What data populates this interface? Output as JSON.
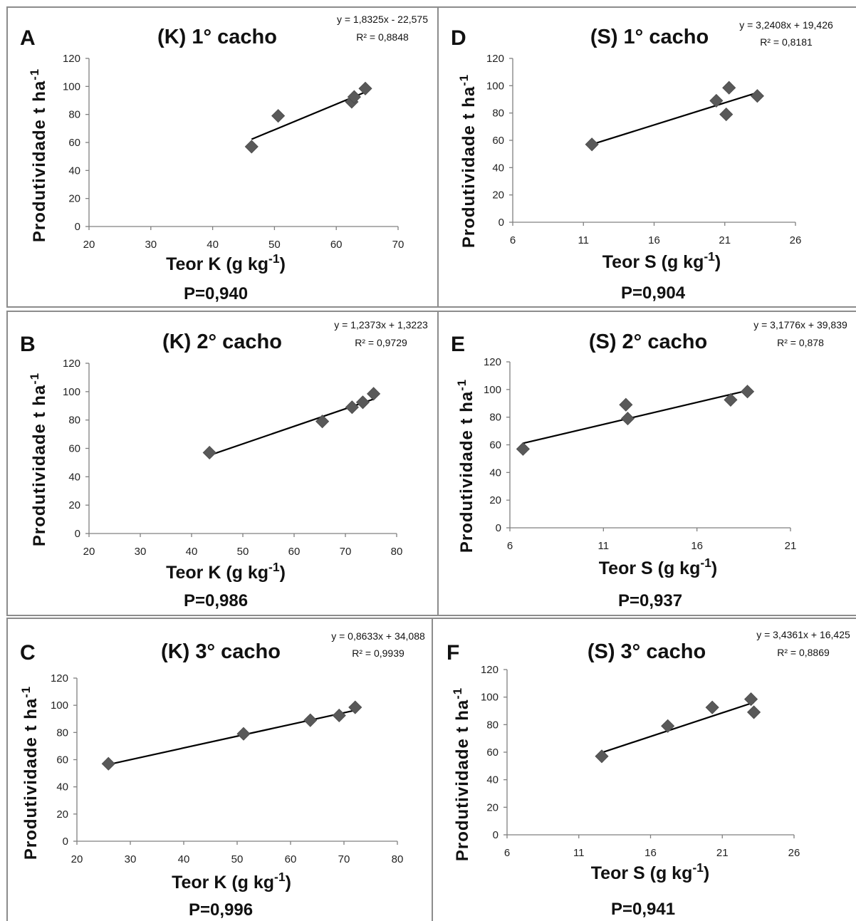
{
  "chart_data": [
    {
      "type": "scatter",
      "panel_letter": "A",
      "title": "(K) 1° cacho",
      "xlabel": "Teor K (g kg-1)",
      "ylabel": "Produtividade t ha-1",
      "xlim": [
        20,
        70
      ],
      "ylim": [
        0,
        120
      ],
      "xticks": [
        20,
        30,
        40,
        50,
        60,
        70
      ],
      "yticks": [
        0,
        20,
        40,
        60,
        80,
        100,
        120
      ],
      "points": [
        [
          46.3,
          57
        ],
        [
          50.6,
          79
        ],
        [
          62.5,
          89
        ],
        [
          62.9,
          92.5
        ],
        [
          64.7,
          98.5
        ]
      ],
      "trendline": {
        "slope": 1.8325,
        "intercept": -22.575,
        "x_range": [
          46.3,
          64.7
        ]
      },
      "equation": "y = 1,8325x - 22,575",
      "r2": "R² = 0,8848",
      "p_value": "P=0,940"
    },
    {
      "type": "scatter",
      "panel_letter": "D",
      "title": "(S) 1° cacho",
      "xlabel": "Teor S (g kg-1)",
      "ylabel": "Produtividade t ha-1",
      "xlim": [
        6,
        26
      ],
      "ylim": [
        0,
        120
      ],
      "xticks": [
        6,
        11,
        16,
        21,
        26
      ],
      "yticks": [
        0,
        20,
        40,
        60,
        80,
        100,
        120
      ],
      "points": [
        [
          11.6,
          57
        ],
        [
          20.4,
          89
        ],
        [
          21.3,
          98.5
        ],
        [
          21.1,
          79
        ],
        [
          23.3,
          92.5
        ]
      ],
      "trendline": {
        "slope": 3.2408,
        "intercept": 19.426,
        "x_range": [
          11.6,
          23.3
        ]
      },
      "equation": "y = 3,2408x + 19,426",
      "r2": "R² = 0,8181",
      "p_value": "P=0,904"
    },
    {
      "type": "scatter",
      "panel_letter": "B",
      "title": "(K) 2° cacho",
      "xlabel": "Teor K (g kg-1)",
      "ylabel": "Produtividade t ha-1",
      "xlim": [
        20,
        80
      ],
      "ylim": [
        0,
        120
      ],
      "xticks": [
        20,
        30,
        40,
        50,
        60,
        70,
        80
      ],
      "yticks": [
        0,
        20,
        40,
        60,
        80,
        100,
        120
      ],
      "points": [
        [
          43.5,
          57
        ],
        [
          65.5,
          79
        ],
        [
          71.3,
          89
        ],
        [
          73.4,
          92.5
        ],
        [
          75.5,
          98.5
        ]
      ],
      "trendline": {
        "slope": 1.2373,
        "intercept": 1.3223,
        "x_range": [
          43.5,
          75.5
        ]
      },
      "equation": "y = 1,2373x + 1,3223",
      "r2": "R² = 0,9729",
      "p_value": "P=0,986"
    },
    {
      "type": "scatter",
      "panel_letter": "E",
      "title": "(S) 2° cacho",
      "xlabel": "Teor S (g kg-1)",
      "ylabel": "Produtividade t ha-1",
      "xlim": [
        6,
        21
      ],
      "ylim": [
        0,
        120
      ],
      "xticks": [
        6,
        11,
        16,
        21
      ],
      "yticks": [
        0,
        20,
        40,
        60,
        80,
        100,
        120
      ],
      "points": [
        [
          6.7,
          57
        ],
        [
          12.2,
          89
        ],
        [
          12.3,
          79
        ],
        [
          17.8,
          92.5
        ],
        [
          18.7,
          98.5
        ]
      ],
      "trendline": {
        "slope": 3.1776,
        "intercept": 39.839,
        "x_range": [
          6.7,
          18.7
        ]
      },
      "equation": "y = 3,1776x + 39,839",
      "r2": "R² = 0,878",
      "p_value": "P=0,937"
    },
    {
      "type": "scatter",
      "panel_letter": "C",
      "title": "(K) 3° cacho",
      "xlabel": "Teor K (g kg-1)",
      "ylabel": "Produtividade t ha-1",
      "xlim": [
        20,
        80
      ],
      "ylim": [
        0,
        120
      ],
      "xticks": [
        20,
        30,
        40,
        50,
        60,
        70,
        80
      ],
      "yticks": [
        0,
        20,
        40,
        60,
        80,
        100,
        120
      ],
      "points": [
        [
          25.9,
          57
        ],
        [
          51.2,
          79
        ],
        [
          63.7,
          89
        ],
        [
          69.1,
          92.5
        ],
        [
          72.1,
          98.5
        ]
      ],
      "trendline": {
        "slope": 0.8633,
        "intercept": 34.088,
        "x_range": [
          25.9,
          72.1
        ]
      },
      "equation": "y = 0,8633x + 34,088",
      "r2": "R² = 0,9939",
      "p_value": "P=0,996"
    },
    {
      "type": "scatter",
      "panel_letter": "F",
      "title": "(S) 3° cacho",
      "xlabel": "Teor S (g kg-1)",
      "ylabel": "Produtividade t ha-1",
      "xlim": [
        6,
        26
      ],
      "ylim": [
        0,
        120
      ],
      "xticks": [
        6,
        11,
        16,
        21,
        26
      ],
      "yticks": [
        0,
        20,
        40,
        60,
        80,
        100,
        120
      ],
      "points": [
        [
          12.6,
          57
        ],
        [
          17.2,
          79
        ],
        [
          20.3,
          92.5
        ],
        [
          23.0,
          98.5
        ],
        [
          23.2,
          89
        ]
      ],
      "trendline": {
        "slope": 3.4361,
        "intercept": 16.425,
        "x_range": [
          12.6,
          23.2
        ]
      },
      "equation": "y = 3,4361x + 16,425",
      "r2": "R² = 0,8869",
      "p_value": "P=0,941"
    }
  ],
  "colors": {
    "marker": "#595959",
    "trendline": "#000000",
    "axis": "#808080",
    "panel_border": "#8c8c8c"
  }
}
